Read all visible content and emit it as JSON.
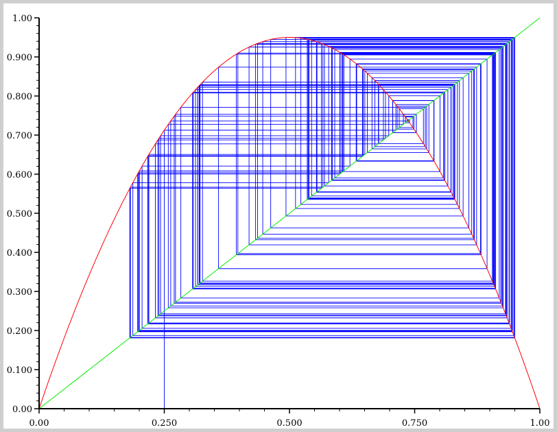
{
  "chart_data": {
    "type": "line",
    "title": "",
    "xlabel": "",
    "ylabel": "",
    "xlim": [
      0,
      1
    ],
    "ylim": [
      0,
      1
    ],
    "grid": false,
    "x_ticks": [
      {
        "value": 0.0,
        "label": "0.00"
      },
      {
        "value": 0.25,
        "label": "0.250"
      },
      {
        "value": 0.5,
        "label": "0.500"
      },
      {
        "value": 0.75,
        "label": "0.750"
      },
      {
        "value": 1.0,
        "label": "1.00"
      }
    ],
    "y_ticks": [
      {
        "value": 0.0,
        "label": "0.00"
      },
      {
        "value": 0.1,
        "label": "0.100"
      },
      {
        "value": 0.2,
        "label": "0.200"
      },
      {
        "value": 0.3,
        "label": "0.300"
      },
      {
        "value": 0.4,
        "label": "0.400"
      },
      {
        "value": 0.5,
        "label": "0.500"
      },
      {
        "value": 0.6,
        "label": "0.600"
      },
      {
        "value": 0.7,
        "label": "0.700"
      },
      {
        "value": 0.8,
        "label": "0.800"
      },
      {
        "value": 0.9,
        "label": "0.900"
      },
      {
        "value": 1.0,
        "label": "1.00"
      }
    ],
    "series": [
      {
        "kind": "logistic-map-curve",
        "r": 3.8,
        "color": "#ff0000"
      },
      {
        "kind": "identity-line",
        "color": "#00ee00"
      },
      {
        "kind": "cobweb",
        "x0": 0.25,
        "r": 3.8,
        "iterations": 160,
        "color": "#0000ff"
      }
    ]
  }
}
